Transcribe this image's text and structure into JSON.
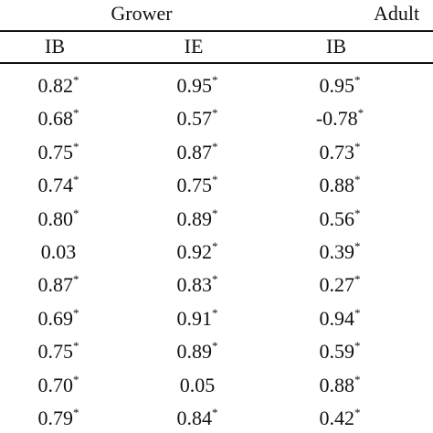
{
  "table": {
    "groups": [
      "Grower",
      "Adult"
    ],
    "columns": [
      "IB",
      "IE",
      "IB"
    ],
    "rows": [
      [
        {
          "text": "0.82",
          "note": "*"
        },
        {
          "text": "0.95",
          "note": "*"
        },
        {
          "text": "0.95",
          "note": "*"
        }
      ],
      [
        {
          "text": "0.68",
          "note": "*"
        },
        {
          "text": "0.57",
          "note": "*"
        },
        {
          "text": "-0.78",
          "note": "*"
        }
      ],
      [
        {
          "text": "0.75",
          "note": "*"
        },
        {
          "text": "0.87",
          "note": "*"
        },
        {
          "text": "0.73",
          "note": "*"
        }
      ],
      [
        {
          "text": "0.74",
          "note": "*"
        },
        {
          "text": "0.75",
          "note": "*"
        },
        {
          "text": "0.88",
          "note": "*"
        }
      ],
      [
        {
          "text": "0.80",
          "note": "*"
        },
        {
          "text": "0.89",
          "note": "*"
        },
        {
          "text": "0.56",
          "note": "*"
        }
      ],
      [
        {
          "text": "0.03"
        },
        {
          "text": "0.92",
          "note": "*"
        },
        {
          "text": "0.39",
          "note": "*"
        }
      ],
      [
        {
          "text": "0.87",
          "note": "*"
        },
        {
          "text": "0.83",
          "note": "*"
        },
        {
          "text": "0.27",
          "note": "*"
        }
      ],
      [
        {
          "text": "0.69",
          "note": "*"
        },
        {
          "text": "0.91",
          "note": "*"
        },
        {
          "text": "0.94",
          "note": "*"
        }
      ],
      [
        {
          "text": "0.75",
          "note": "*"
        },
        {
          "text": "0.89",
          "note": "*"
        },
        {
          "text": "0.59",
          "note": "*"
        }
      ],
      [
        {
          "text": "0.70",
          "note": "*"
        },
        {
          "text": "0.05"
        },
        {
          "text": "0.88",
          "note": "*"
        }
      ],
      [
        {
          "text": "0.79",
          "note": "*"
        },
        {
          "text": "0.84",
          "note": "*"
        },
        {
          "text": "0.42",
          "note": "*"
        }
      ]
    ]
  }
}
